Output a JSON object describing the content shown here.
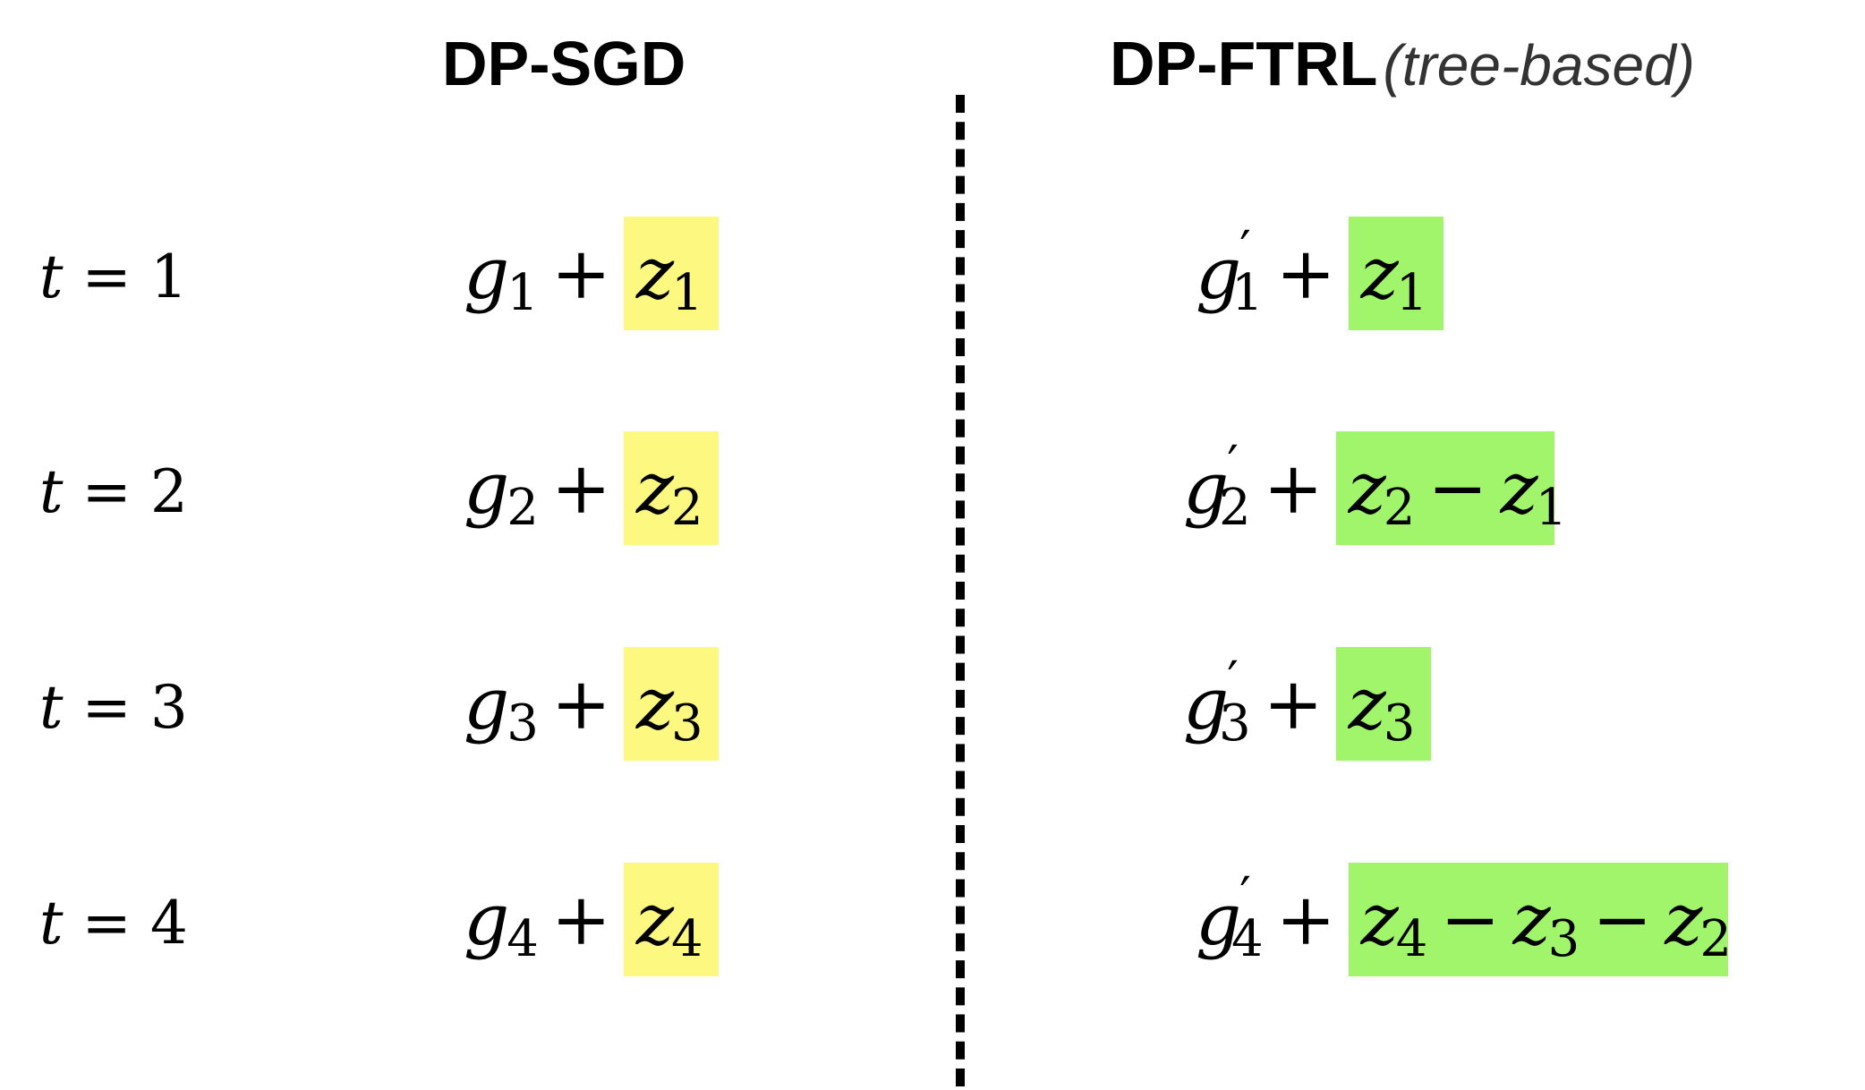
{
  "left_title": "DP-SGD",
  "right_title": "DP-FTRL",
  "right_subtitle": "(tree-based)",
  "colors": {
    "sgd_noise_highlight": "#fdf87f",
    "ftrl_noise_highlight": "#a0f56a"
  },
  "rows": [
    {
      "t_var": "t",
      "t_eq": "=",
      "t_val": "1",
      "sgd": {
        "g": "g",
        "g_sub": "1",
        "plus": "+",
        "z": "z",
        "z_sub": "1"
      },
      "ftrl": {
        "g": "g",
        "prime": "′",
        "g_sub": "1",
        "plus": "+",
        "terms": [
          {
            "z": "z",
            "sub": "1"
          }
        ]
      }
    },
    {
      "t_var": "t",
      "t_eq": "=",
      "t_val": "2",
      "sgd": {
        "g": "g",
        "g_sub": "2",
        "plus": "+",
        "z": "z",
        "z_sub": "2"
      },
      "ftrl": {
        "g": "g",
        "prime": "′",
        "g_sub": "2",
        "plus": "+",
        "terms": [
          {
            "z": "z",
            "sub": "2"
          },
          {
            "op": "−",
            "z": "z",
            "sub": "1"
          }
        ]
      }
    },
    {
      "t_var": "t",
      "t_eq": "=",
      "t_val": "3",
      "sgd": {
        "g": "g",
        "g_sub": "3",
        "plus": "+",
        "z": "z",
        "z_sub": "3"
      },
      "ftrl": {
        "g": "g",
        "prime": "′",
        "g_sub": "3",
        "plus": "+",
        "terms": [
          {
            "z": "z",
            "sub": "3"
          }
        ]
      }
    },
    {
      "t_var": "t",
      "t_eq": "=",
      "t_val": "4",
      "sgd": {
        "g": "g",
        "g_sub": "4",
        "plus": "+",
        "z": "z",
        "z_sub": "4"
      },
      "ftrl": {
        "g": "g",
        "prime": "′",
        "g_sub": "4",
        "plus": "+",
        "terms": [
          {
            "z": "z",
            "sub": "4"
          },
          {
            "op": "−",
            "z": "z",
            "sub": "3"
          },
          {
            "op": "−",
            "z": "z",
            "sub": "2"
          }
        ]
      }
    }
  ]
}
